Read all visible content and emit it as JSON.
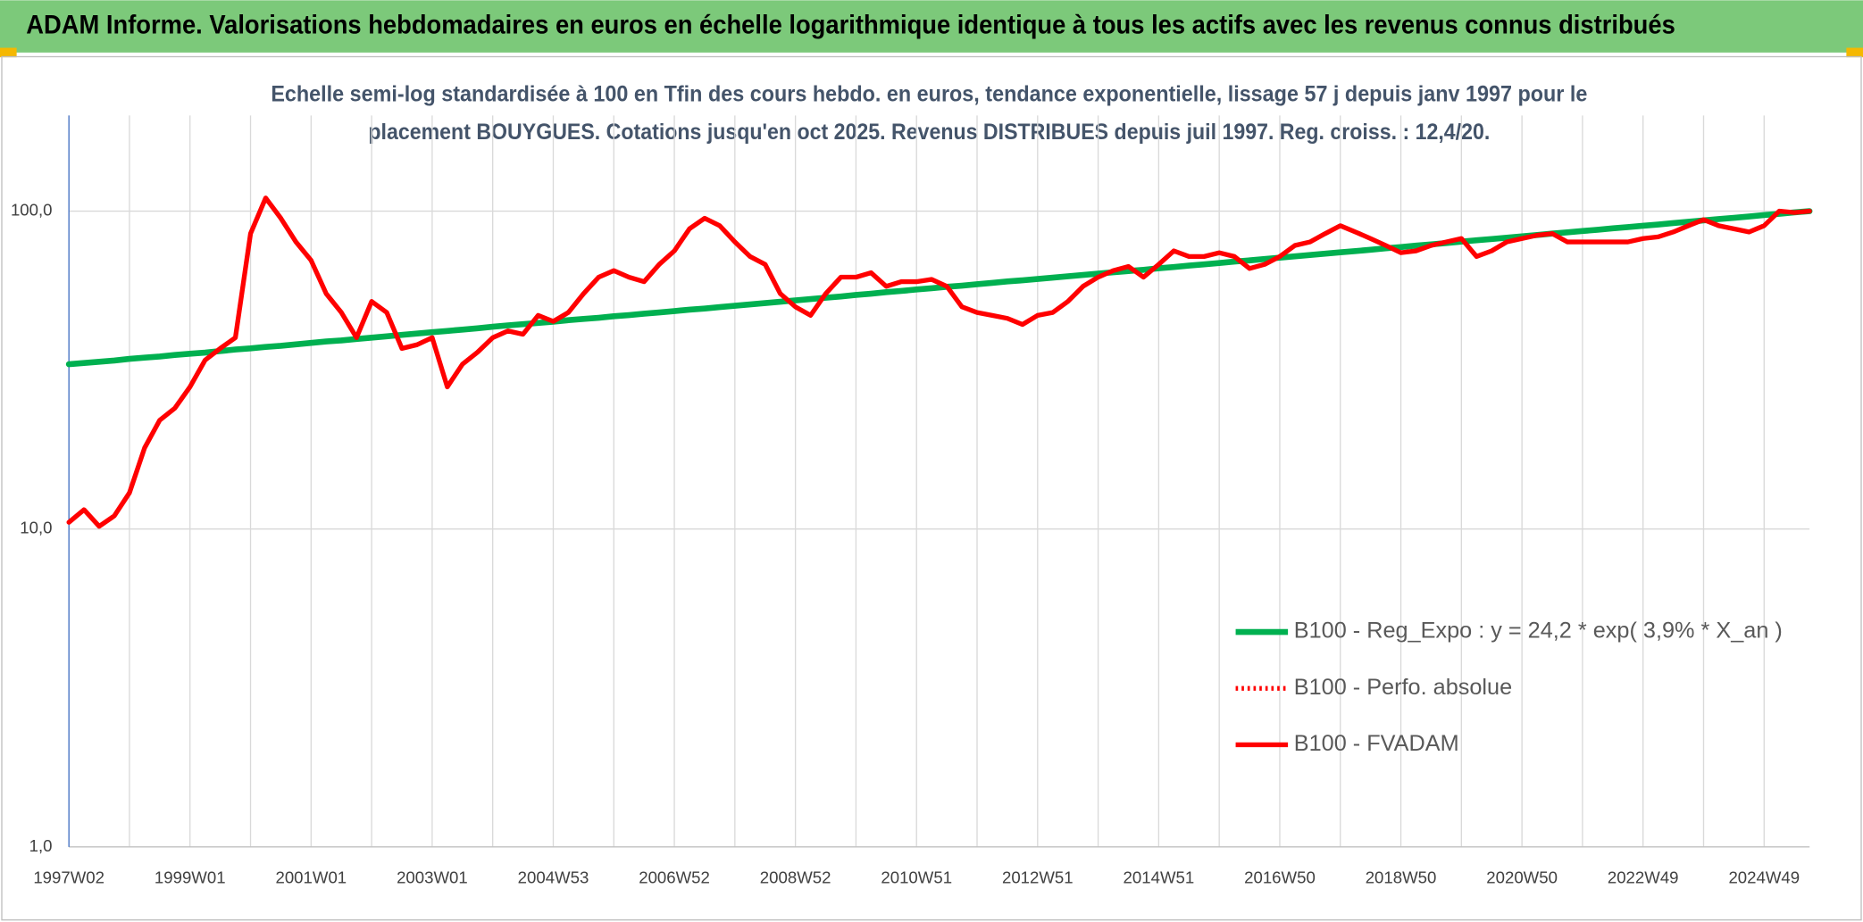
{
  "chart_data": {
    "type": "line",
    "title": "ADAM Informe. Valorisations hebdomadaires en euros en échelle logarithmique identique à tous les actifs avec les revenus connus distribués",
    "subtitle": [
      "Echelle semi-log standardisée à 100 en Tfin des cours hebdo. en euros, tendance exponentielle, lissage 57 j depuis janv 1997 pour le",
      "placement BOUYGUES. Cotations jusqu'en oct 2025. Revenus DISTRIBUES depuis juil 1997. Reg. croiss. : 12,4/20."
    ],
    "log_scale": true,
    "ylim": [
      1,
      200
    ],
    "yticks": [
      {
        "value": 1,
        "label": "1,0"
      },
      {
        "value": 10,
        "label": "10,0"
      },
      {
        "value": 100,
        "label": "100,0"
      }
    ],
    "grid": true,
    "legend": "lower right",
    "categories": [
      "1997W02",
      null,
      null,
      null,
      null,
      null,
      null,
      null,
      "1999W01",
      null,
      null,
      null,
      null,
      null,
      null,
      null,
      "2001W01",
      null,
      null,
      null,
      null,
      null,
      null,
      null,
      "2003W01",
      null,
      null,
      null,
      null,
      null,
      null,
      null,
      "2004W53",
      null,
      null,
      null,
      null,
      null,
      null,
      null,
      "2006W52",
      null,
      null,
      null,
      null,
      null,
      null,
      null,
      "2008W52",
      null,
      null,
      null,
      null,
      null,
      null,
      null,
      "2010W51",
      null,
      null,
      null,
      null,
      null,
      null,
      null,
      "2012W51",
      null,
      null,
      null,
      null,
      null,
      null,
      null,
      "2014W51",
      null,
      null,
      null,
      null,
      null,
      null,
      null,
      "2016W50",
      null,
      null,
      null,
      null,
      null,
      null,
      null,
      "2018W50",
      null,
      null,
      null,
      null,
      null,
      null,
      null,
      "2020W50",
      null,
      null,
      null,
      null,
      null,
      null,
      null,
      "2022W49",
      null,
      null,
      null,
      null,
      null,
      null,
      null,
      "2024W49",
      null,
      null,
      null
    ],
    "series": [
      {
        "name": "B100 - Reg_Expo : y = 24,2 * exp( 3,9% *  X_an )",
        "color": "#00b050",
        "line_style": "solid",
        "values": [
          33.0,
          33.3,
          33.6,
          33.9,
          34.3,
          34.6,
          34.9,
          35.3,
          35.6,
          35.9,
          36.3,
          36.7,
          37.0,
          37.4,
          37.7,
          38.1,
          38.5,
          38.9,
          39.2,
          39.6,
          40.0,
          40.4,
          40.8,
          41.2,
          41.6,
          42.0,
          42.4,
          42.8,
          43.3,
          43.7,
          44.1,
          44.5,
          44.9,
          45.4,
          45.8,
          46.2,
          46.7,
          47.1,
          47.6,
          48.0,
          48.5,
          49.0,
          49.4,
          49.9,
          50.4,
          50.9,
          51.4,
          51.9,
          52.4,
          52.9,
          53.4,
          53.9,
          54.5,
          55.0,
          55.6,
          56.1,
          56.7,
          57.2,
          57.8,
          58.3,
          58.9,
          59.5,
          60.1,
          60.6,
          61.2,
          61.8,
          62.4,
          63.0,
          63.6,
          64.2,
          64.8,
          65.4,
          66.1,
          66.7,
          67.4,
          68.0,
          68.7,
          69.4,
          70.0,
          70.7,
          71.4,
          72.1,
          72.8,
          73.5,
          74.2,
          74.9,
          75.6,
          76.4,
          77.1,
          77.9,
          78.6,
          79.4,
          80.2,
          81.0,
          81.7,
          82.5,
          83.3,
          84.1,
          85.0,
          85.8,
          86.6,
          87.4,
          88.3,
          89.1,
          90.0,
          90.8,
          91.7,
          92.6,
          93.5,
          94.4,
          95.3,
          96.2,
          97.2,
          98.1,
          99.1,
          100.0
        ]
      },
      {
        "name": "B100 - Perfo. absolue",
        "color": "#ff0000",
        "line_style": "dotted",
        "values": [
          null,
          null,
          null,
          null,
          null,
          null,
          null,
          null,
          null,
          null,
          null,
          null,
          null,
          null,
          null,
          null,
          null,
          null,
          null,
          null,
          null,
          null,
          null,
          null,
          null,
          null,
          null,
          null,
          null,
          null,
          null,
          null,
          null,
          null,
          null,
          null,
          null,
          null,
          null,
          null,
          null,
          null,
          null,
          null,
          null,
          null,
          null,
          null,
          null,
          null,
          null,
          null,
          null,
          null,
          null,
          null,
          null,
          null,
          null,
          null,
          null,
          null,
          null,
          null,
          null,
          null,
          null,
          null,
          null,
          null,
          null,
          null,
          null,
          null,
          null,
          null,
          null,
          null,
          null,
          null,
          null,
          null,
          null,
          null,
          null,
          null,
          null,
          null,
          null,
          null,
          null,
          null,
          null,
          null,
          null,
          null,
          null,
          null,
          null,
          null,
          null,
          null,
          null,
          null,
          null,
          null,
          null,
          null,
          null,
          null,
          null,
          null,
          null,
          null,
          null,
          null
        ]
      },
      {
        "name": "B100 - FVADAM",
        "color": "#ff0000",
        "line_style": "solid",
        "values": [
          10.5,
          11.5,
          10.2,
          11,
          13,
          18,
          22,
          24,
          28,
          34,
          37,
          40,
          85,
          110,
          95,
          80,
          70,
          55,
          48,
          40,
          52,
          48,
          37,
          38,
          40,
          28,
          33,
          36,
          40,
          42,
          41,
          47,
          45,
          48,
          55,
          62,
          65,
          62,
          60,
          68,
          75,
          88,
          95,
          90,
          80,
          72,
          68,
          55,
          50,
          47,
          55,
          62,
          62,
          64,
          58,
          60,
          60,
          61,
          58,
          50,
          48,
          47,
          46,
          44,
          47,
          48,
          52,
          58,
          62,
          65,
          67,
          62,
          68,
          75,
          72,
          72,
          74,
          72,
          66,
          68,
          72,
          78,
          80,
          85,
          90,
          86,
          82,
          78,
          74,
          75,
          78,
          80,
          82,
          72,
          75,
          80,
          82,
          84,
          85,
          80,
          80,
          80,
          80,
          80,
          82,
          83,
          86,
          90,
          94,
          90,
          88,
          86,
          90,
          100,
          99,
          100
        ]
      }
    ]
  }
}
